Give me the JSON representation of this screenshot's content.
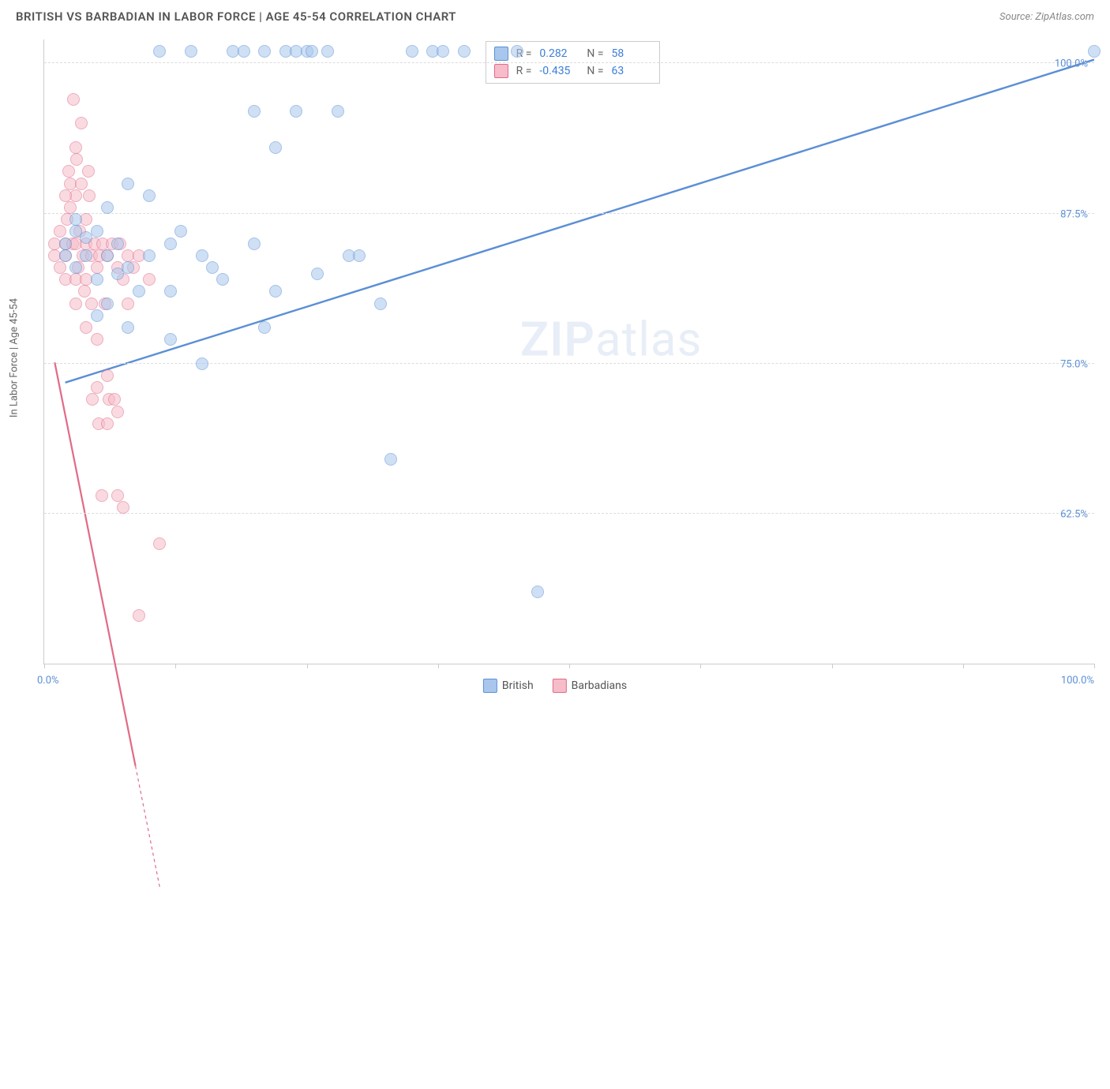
{
  "title": "BRITISH VS BARBADIAN IN LABOR FORCE | AGE 45-54 CORRELATION CHART",
  "source": "Source: ZipAtlas.com",
  "y_axis_label": "In Labor Force | Age 45-54",
  "watermark": {
    "zip": "ZIP",
    "atlas": "atlas"
  },
  "chart": {
    "type": "scatter",
    "xlim": [
      0,
      100
    ],
    "ylim": [
      50,
      102
    ],
    "x_tick_positions": [
      0,
      12.5,
      25,
      37.5,
      50,
      62.5,
      75,
      87.5,
      100
    ],
    "x_axis_left_label": "0.0%",
    "x_axis_right_label": "100.0%",
    "y_ticks": [
      {
        "v": 62.5,
        "label": "62.5%"
      },
      {
        "v": 75.0,
        "label": "75.0%"
      },
      {
        "v": 87.5,
        "label": "87.5%"
      },
      {
        "v": 100.0,
        "label": "100.0%"
      }
    ],
    "background_color": "#ffffff",
    "grid_color": "#dddddd",
    "marker_radius": 8,
    "marker_opacity": 0.55,
    "series": [
      {
        "name": "British",
        "fill": "#a9c7ec",
        "stroke": "#5b8fd6",
        "r": 0.282,
        "n": 58,
        "trend": {
          "x1": 2,
          "y1": 85,
          "x2": 100,
          "y2": 101,
          "dash": false,
          "width": 2.4
        },
        "points": [
          [
            2,
            85
          ],
          [
            2,
            84
          ],
          [
            3,
            86
          ],
          [
            3,
            83
          ],
          [
            4,
            84
          ],
          [
            4,
            85.5
          ],
          [
            5,
            82
          ],
          [
            5,
            86
          ],
          [
            6,
            88
          ],
          [
            6,
            84
          ],
          [
            7,
            85
          ],
          [
            7,
            82.5
          ],
          [
            8,
            83
          ],
          [
            8,
            90
          ],
          [
            9,
            81
          ],
          [
            10,
            84
          ],
          [
            10,
            89
          ],
          [
            11,
            101
          ],
          [
            12,
            85
          ],
          [
            12,
            81
          ],
          [
            13,
            86
          ],
          [
            14,
            101
          ],
          [
            15,
            84
          ],
          [
            15,
            75
          ],
          [
            16,
            83
          ],
          [
            17,
            82
          ],
          [
            18,
            101
          ],
          [
            19,
            101
          ],
          [
            20,
            96
          ],
          [
            20,
            85
          ],
          [
            21,
            101
          ],
          [
            22,
            93
          ],
          [
            22,
            81
          ],
          [
            23,
            101
          ],
          [
            24,
            96
          ],
          [
            24,
            101
          ],
          [
            25,
            101
          ],
          [
            25.5,
            101
          ],
          [
            26,
            82.5
          ],
          [
            27,
            101
          ],
          [
            28,
            96
          ],
          [
            29,
            84
          ],
          [
            30,
            84
          ],
          [
            32,
            80
          ],
          [
            33,
            67
          ],
          [
            35,
            101
          ],
          [
            37,
            101
          ],
          [
            38,
            101
          ],
          [
            40,
            101
          ],
          [
            45,
            101
          ],
          [
            47,
            56
          ],
          [
            100,
            101
          ],
          [
            21,
            78
          ],
          [
            12,
            77
          ],
          [
            6,
            80
          ],
          [
            8,
            78
          ],
          [
            5,
            79
          ],
          [
            3,
            87
          ]
        ]
      },
      {
        "name": "Barbadians",
        "fill": "#f7bcc9",
        "stroke": "#e06b87",
        "r": -0.435,
        "n": 63,
        "trend": {
          "x1": 1,
          "y1": 86,
          "x2": 11,
          "y2": 60,
          "dash_after_y": 66,
          "width": 2.2
        },
        "points": [
          [
            1,
            85
          ],
          [
            1,
            84
          ],
          [
            1.5,
            86
          ],
          [
            1.5,
            83
          ],
          [
            2,
            85
          ],
          [
            2,
            84
          ],
          [
            2,
            82
          ],
          [
            2.2,
            87
          ],
          [
            2.3,
            91
          ],
          [
            2.5,
            90
          ],
          [
            2.5,
            88
          ],
          [
            2.7,
            85
          ],
          [
            2.8,
            97
          ],
          [
            3,
            93
          ],
          [
            3,
            89
          ],
          [
            3,
            85
          ],
          [
            3,
            82
          ],
          [
            3,
            80
          ],
          [
            3.2,
            83
          ],
          [
            3.4,
            86
          ],
          [
            3.5,
            90
          ],
          [
            3.5,
            95
          ],
          [
            3.7,
            84
          ],
          [
            3.8,
            81
          ],
          [
            4,
            85
          ],
          [
            4,
            87
          ],
          [
            4,
            82
          ],
          [
            4,
            78
          ],
          [
            4.2,
            91
          ],
          [
            4.5,
            84
          ],
          [
            4.5,
            80
          ],
          [
            4.6,
            72
          ],
          [
            4.8,
            85
          ],
          [
            5,
            83
          ],
          [
            5,
            77
          ],
          [
            5,
            73
          ],
          [
            5.2,
            70
          ],
          [
            5.3,
            84
          ],
          [
            5.5,
            64
          ],
          [
            5.6,
            85
          ],
          [
            5.8,
            80
          ],
          [
            6,
            84
          ],
          [
            6,
            74
          ],
          [
            6,
            70
          ],
          [
            6.2,
            72
          ],
          [
            6.5,
            85
          ],
          [
            6.7,
            72
          ],
          [
            7,
            83
          ],
          [
            7,
            71
          ],
          [
            7,
            64
          ],
          [
            7.2,
            85
          ],
          [
            7.5,
            82
          ],
          [
            7.5,
            63
          ],
          [
            8,
            84
          ],
          [
            8,
            80
          ],
          [
            8.5,
            83
          ],
          [
            9,
            84
          ],
          [
            9,
            54
          ],
          [
            10,
            82
          ],
          [
            11,
            60
          ],
          [
            2,
            89
          ],
          [
            3.1,
            92
          ],
          [
            4.3,
            89
          ]
        ]
      }
    ],
    "legend_bottom": [
      {
        "name": "British",
        "fill": "#a9c7ec",
        "stroke": "#5b8fd6"
      },
      {
        "name": "Barbadians",
        "fill": "#f7bcc9",
        "stroke": "#e06b87"
      }
    ],
    "legend_top_labels": {
      "r": "R =",
      "n": "N ="
    }
  }
}
